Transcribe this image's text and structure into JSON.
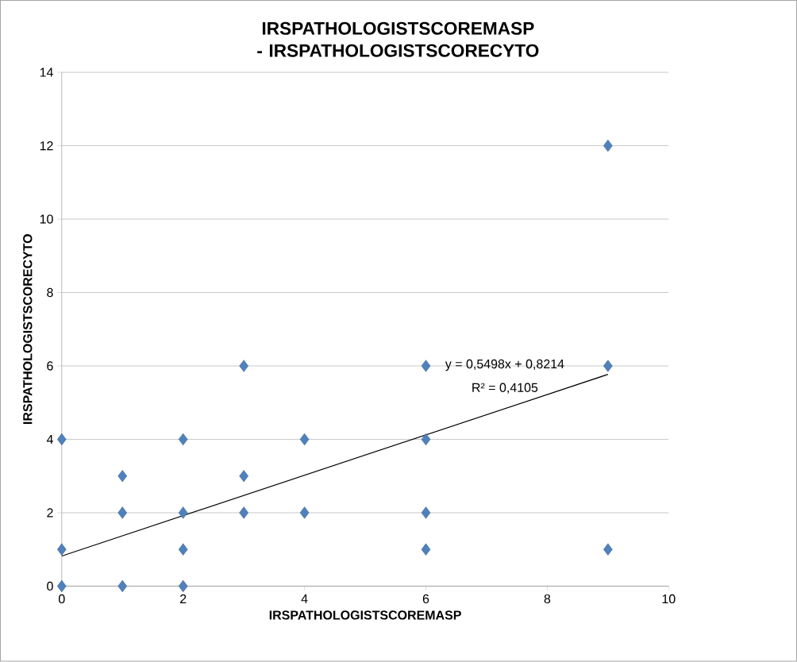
{
  "chart_data": {
    "type": "scatter",
    "title": "IRSPATHOLOGISTSCOREMASP - IRSPATHOLOGISTSCORECYTO",
    "xlabel": "IRSPATHOLOGISTSCOREMASP",
    "ylabel": "IRSPATHOLOGISTSCORECYTO",
    "series": [
      {
        "color": "#4f81bd",
        "marker": "diamond",
        "x": [
          0,
          0,
          0,
          1,
          1,
          1,
          2,
          2,
          2,
          2,
          3,
          3,
          3,
          4,
          4,
          6,
          6,
          6,
          6,
          9,
          9,
          9
        ],
        "values": [
          0,
          1,
          4,
          0,
          2,
          3,
          0,
          1,
          2,
          4,
          2,
          3,
          6,
          2,
          4,
          1,
          2,
          4,
          6,
          1,
          6,
          12
        ]
      },
      {
        "type": "line",
        "color": "#000000",
        "marker": "none",
        "x": [
          0,
          9
        ],
        "values": [
          0.82,
          5.77
        ]
      }
    ],
    "annotations": [
      "y = 0,5498x + 0,8214",
      "R² = 0,4105"
    ],
    "xlim": [
      0,
      10
    ],
    "ylim": [
      0,
      14
    ],
    "xticks": [
      0,
      2,
      4,
      6,
      8,
      10
    ],
    "yticks": [
      0,
      2,
      4,
      6,
      8,
      10,
      12,
      14
    ],
    "grid": "y"
  }
}
